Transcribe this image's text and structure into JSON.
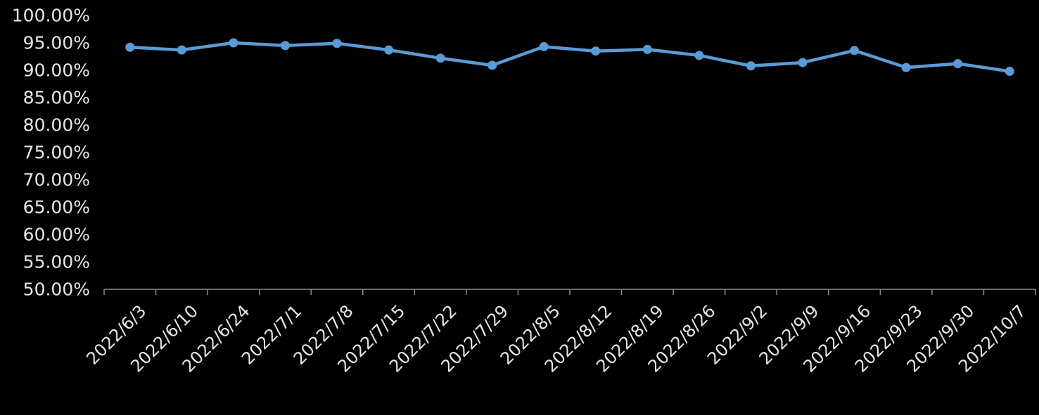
{
  "chart_data": {
    "type": "line",
    "title": "",
    "xlabel": "",
    "ylabel": "",
    "categories": [
      "2022/6/3",
      "2022/6/10",
      "2022/6/24",
      "2022/7/1",
      "2022/7/8",
      "2022/7/15",
      "2022/7/22",
      "2022/7/29",
      "2022/8/5",
      "2022/8/12",
      "2022/8/19",
      "2022/8/26",
      "2022/9/2",
      "2022/9/9",
      "2022/9/16",
      "2022/9/23",
      "2022/9/30",
      "2022/10/7"
    ],
    "series": [
      {
        "values": [
          94.2,
          93.7,
          95.0,
          94.5,
          94.9,
          93.7,
          92.2,
          90.9,
          94.3,
          93.5,
          93.8,
          92.7,
          90.8,
          91.4,
          93.6,
          90.5,
          91.2,
          89.8
        ],
        "color": "#5b9bd5"
      }
    ],
    "yticks": [
      "50.00%",
      "55.00%",
      "60.00%",
      "65.00%",
      "70.00%",
      "75.00%",
      "80.00%",
      "85.00%",
      "90.00%",
      "95.00%",
      "100.00%"
    ],
    "ylim": [
      50,
      100
    ],
    "grid": false,
    "legend": "none",
    "axis_color": "#8c8c8c",
    "text_color": "#e6e6e6",
    "background": "#000000"
  }
}
